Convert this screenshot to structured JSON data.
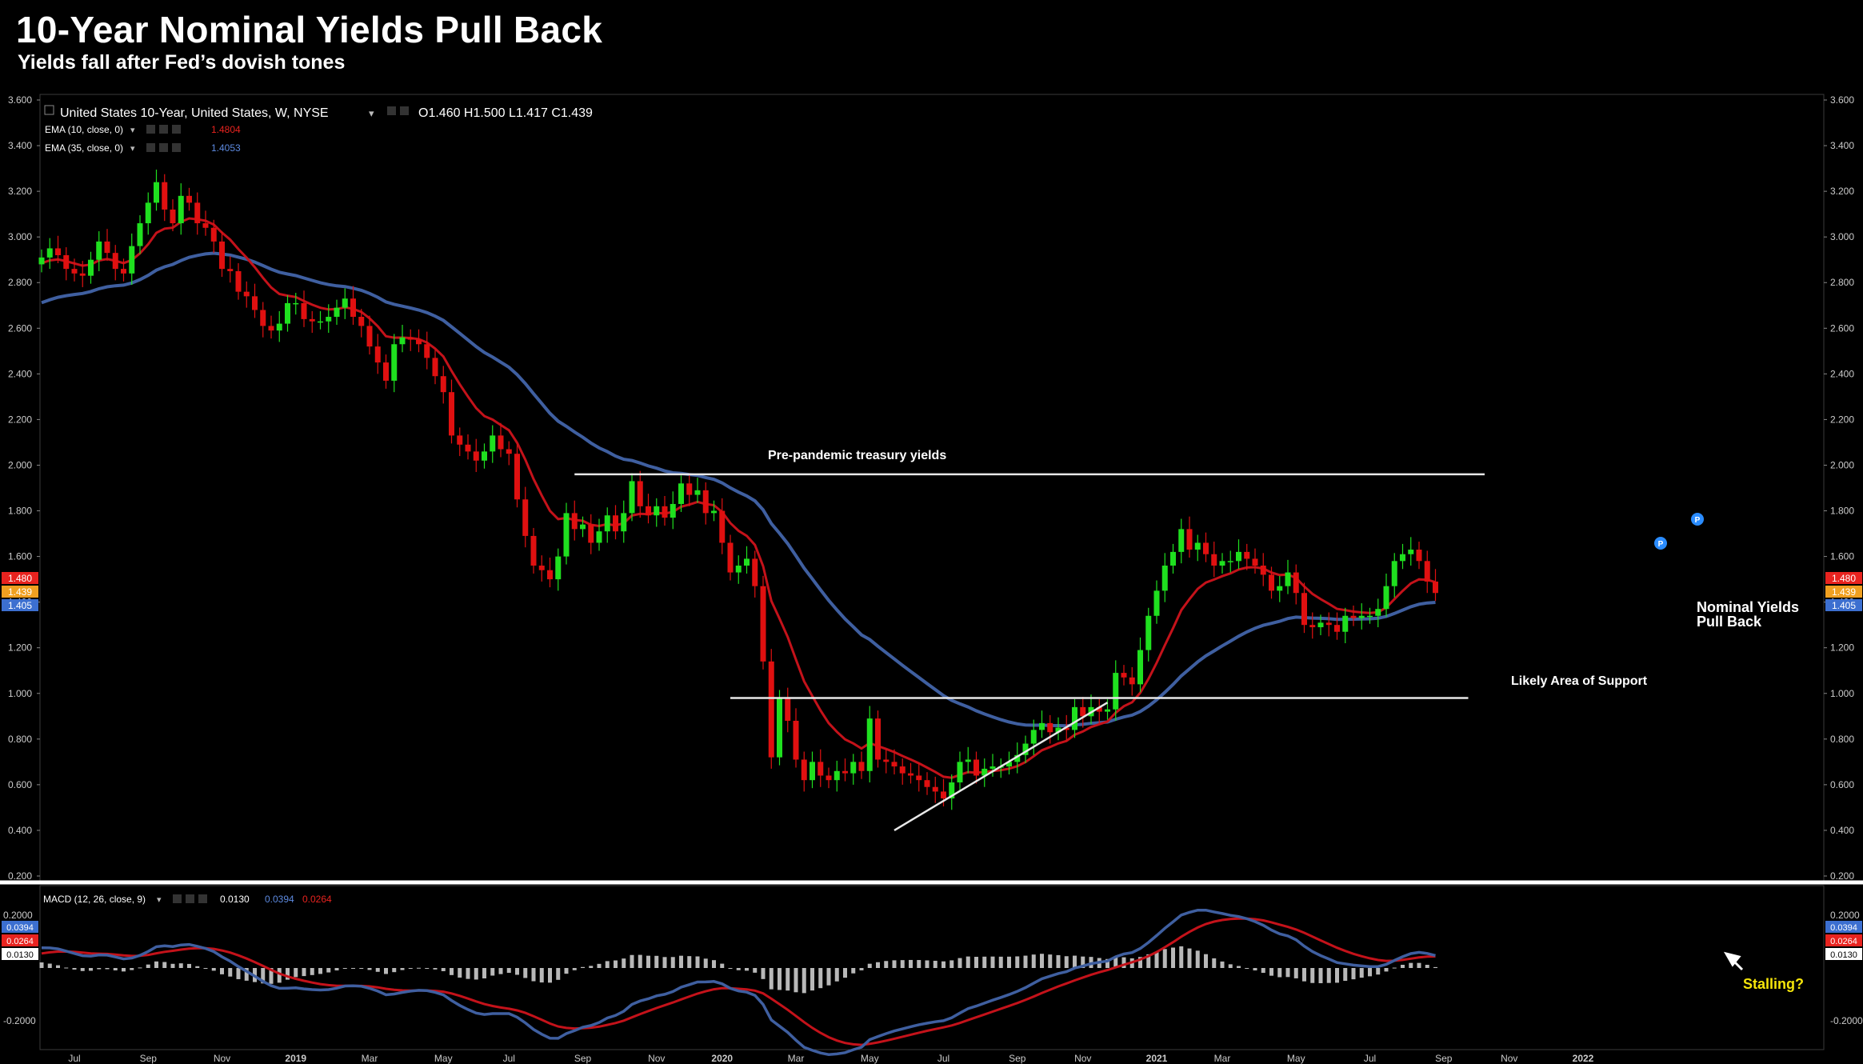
{
  "header": {
    "title": "10-Year Nominal Yields Pull Back",
    "subtitle": "Yields fall after Fed’s dovish tones"
  },
  "legend": {
    "symbol": "United States 10-Year, United States, W, NYSE",
    "ohlc": "O1.460   H1.500   L1.417   C1.439",
    "ema10_label": "EMA (10, close, 0)",
    "ema10_value": "1.4804",
    "ema35_label": "EMA (35, close, 0)",
    "ema35_value": "1.4053",
    "macd_label": "MACD (12, 26, close, 9)",
    "macd_hist": "0.0130",
    "macd_line": "0.0394",
    "macd_signal": "0.0264"
  },
  "colors": {
    "up": "#1fe01f",
    "down": "#e01010",
    "ema10": "#c4121a",
    "ema35": "#3f5fa0",
    "hist": "#b8b8b8",
    "badge_ema10": "#e8231f",
    "badge_close": "#f0a020",
    "badge_ema35": "#3c6fd0",
    "annotation_yellow": "#f5e50a"
  },
  "annotations": {
    "pre_pandemic": "Pre-pandemic treasury yields",
    "support": "Likely Area of Support",
    "pull_back_line1": "Nominal Yields",
    "pull_back_line2": "Pull Back",
    "stalling": "Stalling?",
    "peak_marker": "P"
  },
  "price_badges": [
    "1.480",
    "1.439",
    "1.405"
  ],
  "macd_badges": [
    "0.0394",
    "0.0264",
    "0.0130"
  ],
  "chart_data": {
    "type": "candlestick",
    "title": "10-Year Nominal Yields Pull Back",
    "subtitle": "Yields fall after Fed’s dovish tones",
    "ylim": [
      0.2,
      3.6
    ],
    "yticks": [
      "0.200",
      "0.400",
      "0.600",
      "0.800",
      "1.000",
      "1.200",
      "1.400",
      "1.600",
      "1.800",
      "2.000",
      "2.200",
      "2.400",
      "2.600",
      "2.800",
      "3.000",
      "3.200",
      "3.400",
      "3.600"
    ],
    "xticks": [
      {
        "label": "Jul",
        "week": 4
      },
      {
        "label": "Sep",
        "week": 13
      },
      {
        "label": "Nov",
        "week": 22
      },
      {
        "label": "2019",
        "week": 31
      },
      {
        "label": "Mar",
        "week": 40
      },
      {
        "label": "May",
        "week": 49
      },
      {
        "label": "Jul",
        "week": 57
      },
      {
        "label": "Sep",
        "week": 66
      },
      {
        "label": "Nov",
        "week": 75
      },
      {
        "label": "2020",
        "week": 83
      },
      {
        "label": "Mar",
        "week": 92
      },
      {
        "label": "May",
        "week": 101
      },
      {
        "label": "Jul",
        "week": 110
      },
      {
        "label": "Sep",
        "week": 119
      },
      {
        "label": "Nov",
        "week": 127
      },
      {
        "label": "2021",
        "week": 136
      },
      {
        "label": "Mar",
        "week": 144
      },
      {
        "label": "May",
        "week": 153
      },
      {
        "label": "Jul",
        "week": 162
      },
      {
        "label": "Sep",
        "week": 171
      },
      {
        "label": "Nov",
        "week": 179
      },
      {
        "label": "2022",
        "week": 188
      }
    ],
    "closes": [
      2.91,
      2.95,
      2.92,
      2.86,
      2.84,
      2.83,
      2.9,
      2.98,
      2.93,
      2.86,
      2.84,
      2.96,
      3.06,
      3.15,
      3.24,
      3.12,
      3.06,
      3.18,
      3.15,
      3.06,
      3.04,
      2.98,
      2.86,
      2.85,
      2.76,
      2.74,
      2.68,
      2.61,
      2.59,
      2.62,
      2.71,
      2.71,
      2.64,
      2.63,
      2.63,
      2.65,
      2.69,
      2.73,
      2.65,
      2.61,
      2.52,
      2.45,
      2.37,
      2.53,
      2.56,
      2.55,
      2.53,
      2.47,
      2.39,
      2.32,
      2.13,
      2.09,
      2.06,
      2.02,
      2.06,
      2.13,
      2.07,
      2.05,
      1.85,
      1.69,
      1.56,
      1.54,
      1.5,
      1.6,
      1.79,
      1.72,
      1.74,
      1.66,
      1.71,
      1.78,
      1.71,
      1.79,
      1.93,
      1.82,
      1.78,
      1.82,
      1.77,
      1.83,
      1.92,
      1.87,
      1.89,
      1.79,
      1.8,
      1.66,
      1.53,
      1.56,
      1.59,
      1.47,
      1.14,
      0.72,
      0.98,
      0.88,
      0.71,
      0.62,
      0.7,
      0.64,
      0.62,
      0.66,
      0.65,
      0.7,
      0.66,
      0.89,
      0.71,
      0.7,
      0.68,
      0.65,
      0.64,
      0.62,
      0.59,
      0.57,
      0.54,
      0.61,
      0.7,
      0.71,
      0.64,
      0.67,
      0.68,
      0.68,
      0.7,
      0.73,
      0.78,
      0.84,
      0.87,
      0.83,
      0.85,
      0.84,
      0.94,
      0.9,
      0.94,
      0.92,
      0.93,
      1.09,
      1.07,
      1.04,
      1.19,
      1.34,
      1.45,
      1.56,
      1.62,
      1.72,
      1.63,
      1.66,
      1.61,
      1.56,
      1.58,
      1.58,
      1.62,
      1.59,
      1.56,
      1.52,
      1.45,
      1.47,
      1.53,
      1.44,
      1.3,
      1.29,
      1.31,
      1.3,
      1.27,
      1.34,
      1.33,
      1.34,
      1.34,
      1.37,
      1.47,
      1.58,
      1.61,
      1.63,
      1.58,
      1.49,
      1.44
    ],
    "series": [
      {
        "name": "EMA (10, close, 0)",
        "last": 1.4804
      },
      {
        "name": "EMA (35, close, 0)",
        "last": 1.4053
      }
    ],
    "macd": {
      "name": "MACD (12, 26, close, 9)",
      "ylim": [
        -0.3,
        0.3
      ],
      "yticks": [
        "0.2000",
        "-0.2000"
      ],
      "hist": 0.013,
      "macd": 0.0394,
      "signal": 0.0264
    },
    "lines": [
      {
        "label": "Pre-pandemic treasury yields",
        "y": 1.96,
        "x_start_week": 65,
        "x_end_week": 176
      },
      {
        "label": "Likely Area of Support",
        "y": 0.98,
        "x_start_week": 84,
        "x_end_week": 174
      },
      {
        "label": "trendline",
        "y_start": 0.4,
        "y_end": 0.96,
        "x_start_week": 104,
        "x_end_week": 130
      }
    ]
  }
}
